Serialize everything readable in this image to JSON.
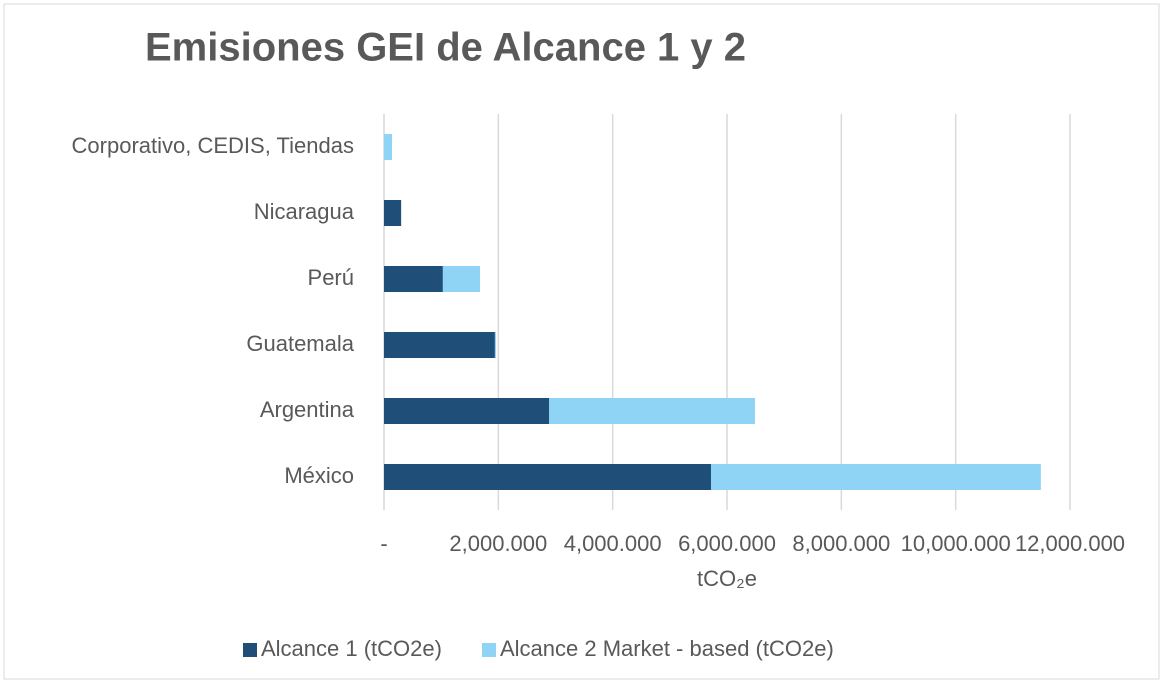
{
  "chart_data": {
    "type": "stacked-bar-horizontal",
    "title": "Emisiones GEI de Alcance 1 y 2",
    "categories": [
      "Corporativo, CEDIS, Tiendas",
      "Nicaragua",
      "Perú",
      "Guatemala",
      "Argentina",
      "México"
    ],
    "series": [
      {
        "name": "Alcance 1 (tCO2e)",
        "color": "#1f4e79",
        "values": [
          0,
          300,
          1030,
          1940,
          2890,
          5720
        ]
      },
      {
        "name": "Alcance 2 Market - based (tCO2e)",
        "color": "#8fd3f5",
        "values": [
          140,
          0,
          650,
          20,
          3600,
          5770
        ]
      }
    ],
    "xlabel": "tCO₂e",
    "xlim": [
      0,
      12000
    ],
    "xticks": [
      {
        "value": 0,
        "label": "-"
      },
      {
        "value": 2000,
        "label": "2,000.000"
      },
      {
        "value": 4000,
        "label": "4,000.000"
      },
      {
        "value": 6000,
        "label": "6,000.000"
      },
      {
        "value": 8000,
        "label": "8,000.000"
      },
      {
        "value": 10000,
        "label": "10,000.000"
      },
      {
        "value": 12000,
        "label": "12,000.000"
      }
    ],
    "grid": true,
    "legend": "bottom"
  }
}
